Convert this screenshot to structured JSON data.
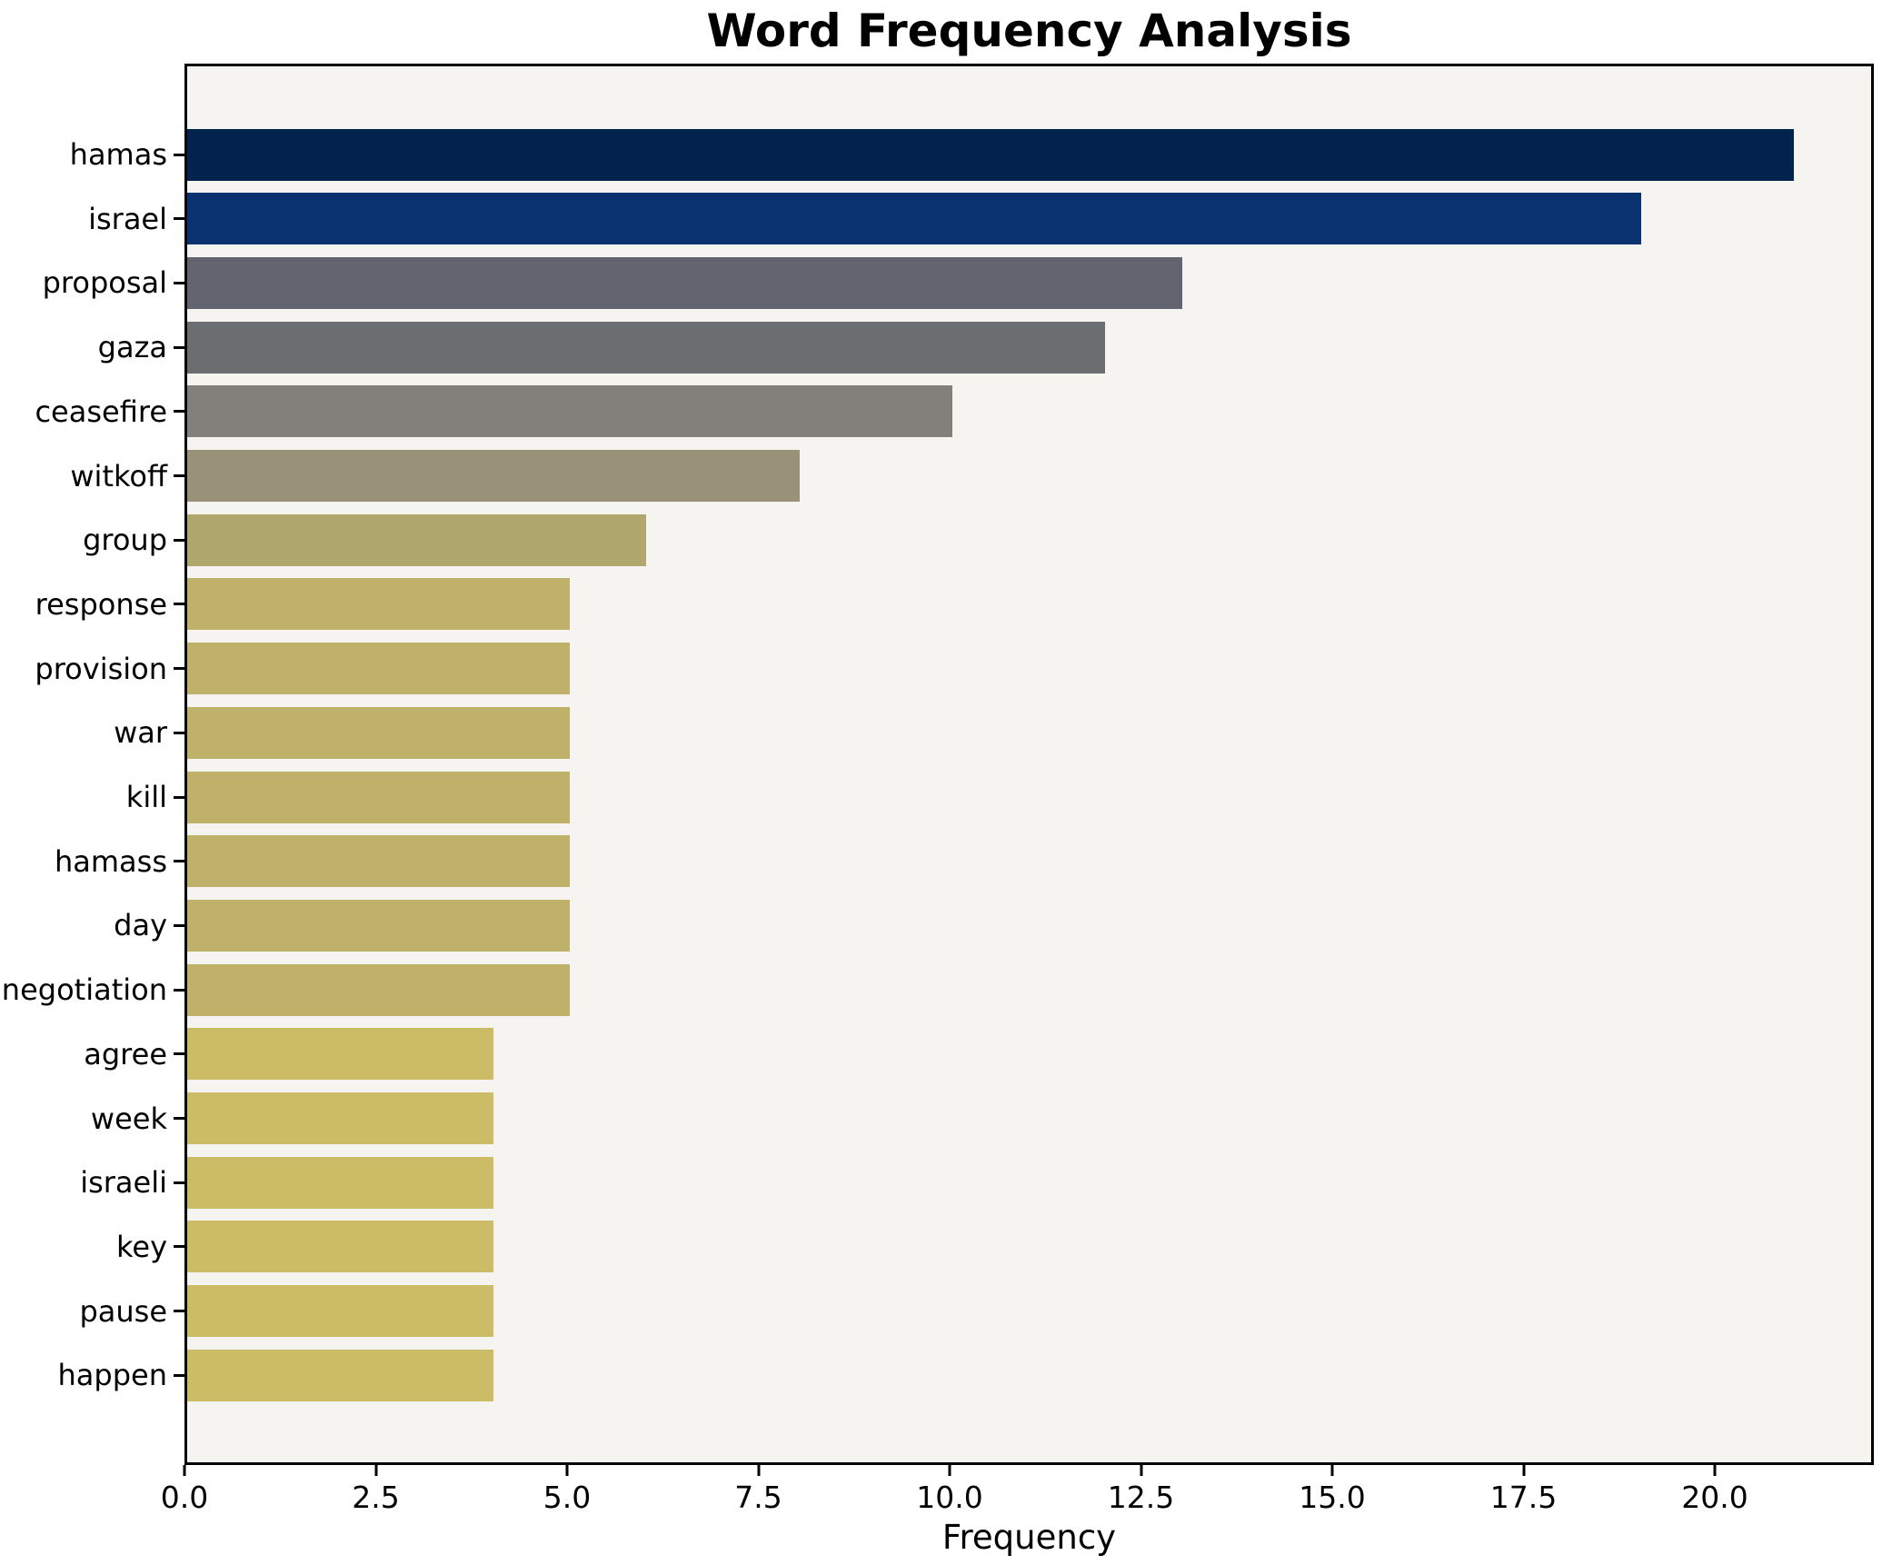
{
  "chart_data": {
    "type": "bar",
    "orientation": "horizontal",
    "title": "Word Frequency Analysis",
    "xlabel": "Frequency",
    "ylabel": "",
    "categories": [
      "hamas",
      "israel",
      "proposal",
      "gaza",
      "ceasefire",
      "witkoff",
      "group",
      "response",
      "provision",
      "war",
      "kill",
      "hamass",
      "day",
      "negotiation",
      "agree",
      "week",
      "israeli",
      "key",
      "pause",
      "happen"
    ],
    "values": [
      21,
      19,
      13,
      12,
      10,
      8,
      6,
      5,
      5,
      5,
      5,
      5,
      5,
      5,
      4,
      4,
      4,
      4,
      4,
      4
    ],
    "bar_colors": [
      "#02234e",
      "#0a3270",
      "#62646f",
      "#6c6d70",
      "#81807a",
      "#999278",
      "#b0a76e",
      "#bfb169",
      "#bfb169",
      "#bfb169",
      "#bfb169",
      "#bfb169",
      "#bfb169",
      "#bfb169",
      "#ccbc66",
      "#ccbc66",
      "#ccbc66",
      "#ccbc66",
      "#ccbc66",
      "#ccbc66"
    ],
    "xtick_labels": [
      "0.0",
      "2.5",
      "5.0",
      "7.5",
      "10.0",
      "12.5",
      "15.0",
      "17.5",
      "20.0"
    ],
    "xtick_values": [
      0,
      2.5,
      5,
      7.5,
      10,
      12.5,
      15,
      17.5,
      20
    ],
    "xlim": [
      0,
      22.05
    ],
    "grid": false,
    "legend": null,
    "plot_background": "#f5f4f1",
    "figure_background": "#ffffff",
    "spine_color": "#000000",
    "text_color": "#000000"
  }
}
